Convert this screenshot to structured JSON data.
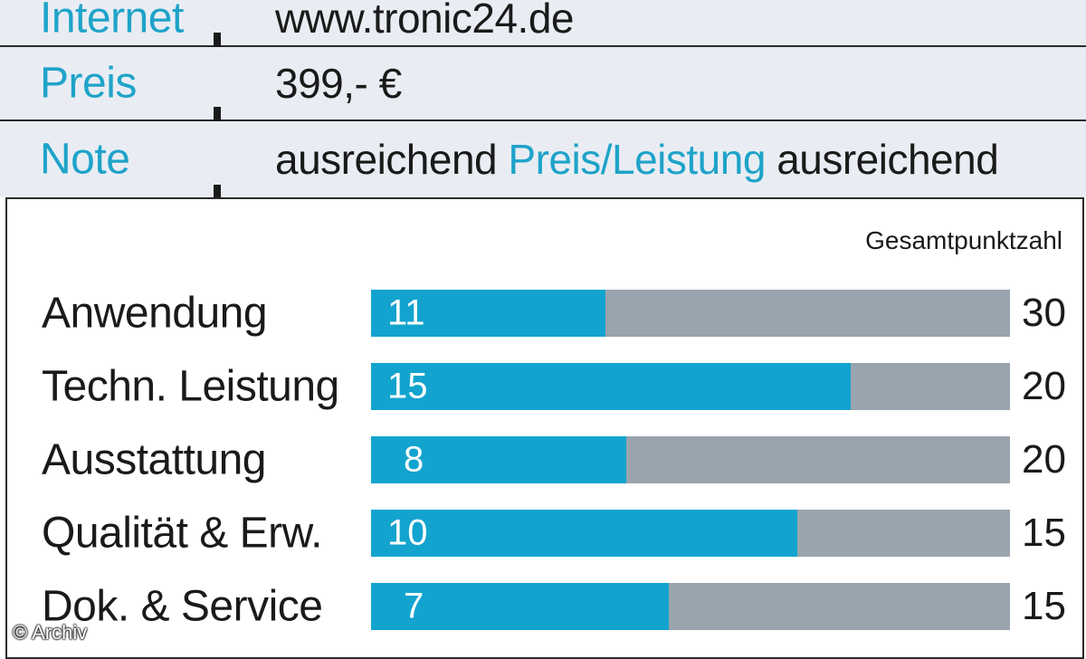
{
  "info": {
    "internet_label": "Internet",
    "internet_value": "www.tronic24.de",
    "preis_label": "Preis",
    "preis_value": "399,- €",
    "note_label": "Note",
    "note_value": "ausreichend",
    "pl_label": "Preis/Leistung",
    "pl_value": "ausreichend"
  },
  "chart_data": {
    "type": "bar",
    "orientation": "horizontal",
    "header": "Gesamtpunktzahl",
    "categories": [
      "Anwendung",
      "Techn. Leistung",
      "Ausstattung",
      "Qualität & Erw.",
      "Dok. & Service"
    ],
    "values": [
      11,
      15,
      8,
      10,
      7
    ],
    "max_values": [
      30,
      20,
      20,
      15,
      15
    ],
    "colors": {
      "fill": "#12a4cf",
      "track": "#9aa4ae"
    }
  },
  "copyright": "© Archiv"
}
